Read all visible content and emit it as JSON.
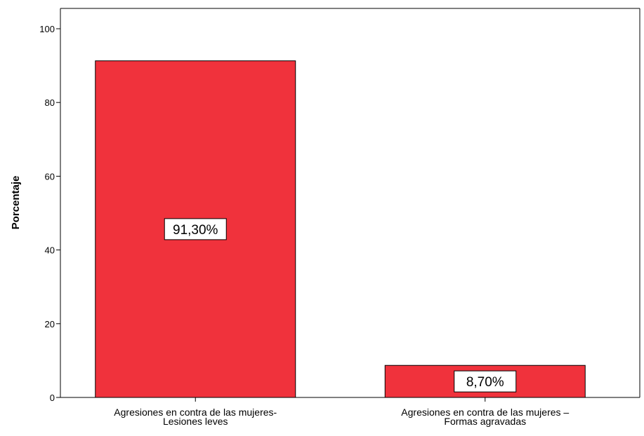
{
  "chart_data": {
    "type": "bar",
    "categories": [
      [
        "Agresiones en contra de las mujeres-",
        "Lesiones leves"
      ],
      [
        "Agresiones en contra de las mujeres –",
        "Formas agravadas"
      ]
    ],
    "values": [
      91.3,
      8.7
    ],
    "data_labels": [
      "91,30%",
      "8,70%"
    ],
    "title": "",
    "xlabel": "",
    "ylabel": "Porcentaje",
    "ylim": [
      0,
      100
    ],
    "yticks": [
      0,
      20,
      40,
      60,
      80,
      100
    ],
    "grid": false,
    "bar_color": "#f0323c",
    "bar_outline": "#000000"
  }
}
